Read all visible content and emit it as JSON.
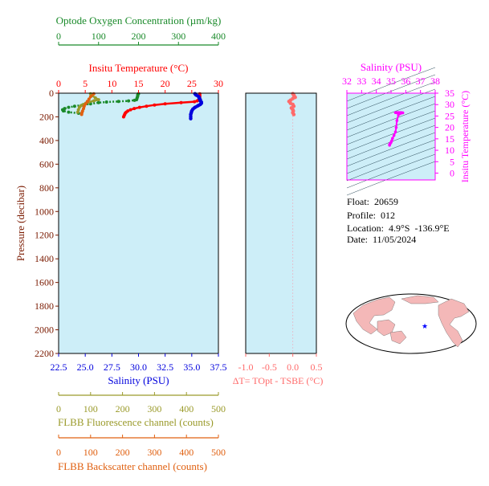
{
  "colors": {
    "oxygen": "#1a8a2a",
    "temperature": "#ff0000",
    "salinity": "#0000dd",
    "pressure": "#7a1a00",
    "fluorescence": "#9a9a2a",
    "backscatter": "#e06010",
    "delta_t": "#ff6a6a",
    "ts": "#ff00ff",
    "plot_bg": "#cdeef8",
    "land": "#f4b8b8",
    "ocean": "#ffffff"
  },
  "info": {
    "float": "Float:  20659",
    "profile": "Profile:  012",
    "location": "Location:  4.9°S  -136.9°E",
    "date": "Date:  11/05/2024"
  },
  "map": {
    "marker": "star",
    "lat": -4.9,
    "lon": -136.9
  },
  "chart_data": [
    {
      "type": "line",
      "ylabel": "Pressure (decibar)",
      "ylim": [
        2200,
        0
      ],
      "yticks": [
        "0",
        "200",
        "400",
        "600",
        "800",
        "1000",
        "1200",
        "1400",
        "1600",
        "1800",
        "2000",
        "2200"
      ],
      "grid": false,
      "axes": {
        "oxygen": {
          "label": "Optode Oxygen Concentration (µm/kg)",
          "range": [
            0,
            400
          ],
          "ticks": [
            "0",
            "100",
            "200",
            "300",
            "400"
          ]
        },
        "temperature": {
          "label": "Insitu Temperature (°C)",
          "range": [
            0,
            30
          ],
          "ticks": [
            "0",
            "5",
            "10",
            "15",
            "20",
            "25",
            "30"
          ]
        },
        "salinity": {
          "label": "Salinity (PSU)",
          "range": [
            22.5,
            37.5
          ],
          "ticks": [
            "22.5",
            "25.0",
            "27.5",
            "30.0",
            "32.5",
            "35.0",
            "37.5"
          ]
        },
        "fluorescence": {
          "label": "FLBB Fluorescence channel (counts)",
          "range": [
            0,
            500
          ],
          "ticks": [
            "0",
            "100",
            "200",
            "300",
            "400",
            "500"
          ]
        },
        "backscatter": {
          "label": "FLBB Backscatter channel (counts)",
          "range": [
            0,
            500
          ],
          "ticks": [
            "0",
            "100",
            "200",
            "300",
            "400",
            "500"
          ]
        }
      },
      "series": [
        {
          "key": "temperature",
          "pressure": [
            5,
            15,
            25,
            35,
            45,
            55,
            65,
            72,
            80,
            90,
            100,
            110,
            120,
            130,
            140,
            150,
            160,
            170,
            180,
            190,
            200
          ],
          "values": [
            26.5,
            26.5,
            26.5,
            26.5,
            26.4,
            26.3,
            26.0,
            25.5,
            23.0,
            20.0,
            18.0,
            16.5,
            15.2,
            14.2,
            13.5,
            13.0,
            12.7,
            12.5,
            12.4,
            12.3,
            12.2
          ]
        },
        {
          "key": "salinity",
          "pressure": [
            5,
            15,
            25,
            35,
            45,
            55,
            65,
            75,
            85,
            95,
            105,
            120,
            135,
            150,
            165,
            180,
            200,
            215
          ],
          "values": [
            35.3,
            35.4,
            35.6,
            35.7,
            35.7,
            35.8,
            35.8,
            35.9,
            35.9,
            35.8,
            35.6,
            35.3,
            35.1,
            35.0,
            34.95,
            34.9,
            34.9,
            34.9
          ]
        },
        {
          "key": "oxygen",
          "pressure": [
            5,
            15,
            25,
            35,
            45,
            55,
            60,
            65,
            70,
            75,
            80,
            90,
            100,
            110,
            120,
            130,
            140,
            150,
            160,
            170
          ],
          "values": [
            200,
            198,
            198,
            197,
            196,
            195,
            190,
            175,
            150,
            120,
            100,
            80,
            60,
            40,
            25,
            15,
            10,
            12,
            25,
            50
          ]
        },
        {
          "key": "fluorescence",
          "pressure": [
            5,
            20,
            40,
            55,
            65,
            75,
            85,
            95,
            105,
            120,
            140,
            160
          ],
          "values": [
            100,
            105,
            115,
            125,
            110,
            95,
            85,
            78,
            70,
            65,
            62,
            60
          ]
        },
        {
          "key": "backscatter",
          "pressure": [
            5,
            30,
            50,
            70,
            90,
            110,
            130,
            150,
            165,
            180
          ],
          "values": [
            110,
            100,
            95,
            90,
            85,
            80,
            78,
            75,
            73,
            72
          ]
        }
      ]
    },
    {
      "type": "scatter",
      "xlabel": "ΔT= T<sup>Opt</sup> - T<sup>SBE</sup> (°C)",
      "xlabel_text": "ΔT= TOpt - TSBE (°C)",
      "xticks": [
        "-1.0",
        "-0.5",
        "0.0",
        "0.5"
      ],
      "xlim": [
        -1.0,
        0.5
      ],
      "ylim": [
        2200,
        0
      ],
      "x": [
        0.0,
        0.02,
        0.03,
        0.05,
        0.0,
        -0.05,
        -0.08,
        -0.05,
        0.0,
        0.02,
        -0.03,
        0.0,
        0.01,
        0.0,
        0.02
      ],
      "y": [
        5,
        15,
        25,
        35,
        45,
        60,
        70,
        85,
        95,
        110,
        125,
        140,
        150,
        165,
        180
      ]
    },
    {
      "type": "scatter",
      "title": "Salinity (PSU)",
      "xlabel": "Salinity (PSU)",
      "ylabel": "Insitu Temperature (°C)",
      "xticks": [
        "32",
        "33",
        "34",
        "35",
        "36",
        "37",
        "38"
      ],
      "yticks": [
        "0",
        "5",
        "10",
        "15",
        "20",
        "25",
        "30",
        "35"
      ],
      "xlim": [
        32,
        38
      ],
      "ylim": [
        -3,
        35
      ],
      "x": [
        34.9,
        34.9,
        34.95,
        35.0,
        35.05,
        35.1,
        35.2,
        35.3,
        35.35,
        35.4,
        35.5,
        35.6,
        35.7,
        35.8,
        35.7,
        35.6,
        35.5,
        35.45,
        35.4,
        35.35,
        35.3
      ],
      "y": [
        12.2,
        12.5,
        13.0,
        13.5,
        14.2,
        15.2,
        16.5,
        18.0,
        20.0,
        23.0,
        25.5,
        26.0,
        26.3,
        26.4,
        26.5,
        26.5,
        26.5,
        26.5,
        26.5,
        26.5,
        26.5
      ]
    }
  ]
}
